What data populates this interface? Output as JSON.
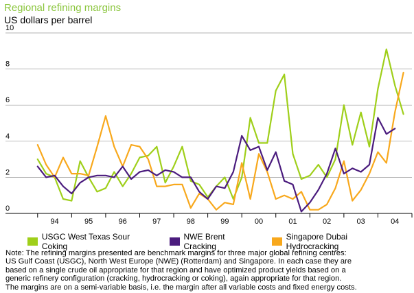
{
  "chart_data": {
    "type": "line",
    "title": "Regional refining margins",
    "ylabel": "US dollars per barrel",
    "xlabel": "",
    "ylim": [
      0,
      10
    ],
    "yticks": [
      0,
      2,
      4,
      6,
      8,
      10
    ],
    "xlim": [
      1993,
      2004.5
    ],
    "xticks": [
      {
        "label": "94",
        "x": 1994.0
      },
      {
        "label": "95",
        "x": 1995.0
      },
      {
        "label": "96",
        "x": 1996.0
      },
      {
        "label": "97",
        "x": 1997.0
      },
      {
        "label": "98",
        "x": 1998.0
      },
      {
        "label": "99",
        "x": 1999.0
      },
      {
        "label": "00",
        "x": 2000.0
      },
      {
        "label": "01",
        "x": 2001.0
      },
      {
        "label": "02",
        "x": 2002.0
      },
      {
        "label": "03",
        "x": 2003.0
      },
      {
        "label": "04",
        "x": 2004.0
      }
    ],
    "series": [
      {
        "name": "USGC West Texas Sour Coking",
        "color": "#9fcf1a",
        "points": [
          [
            1993.5,
            3.0
          ],
          [
            1993.75,
            2.2
          ],
          [
            1994.0,
            2.0
          ],
          [
            1994.25,
            0.8
          ],
          [
            1994.5,
            0.7
          ],
          [
            1994.75,
            2.9
          ],
          [
            1995.0,
            2.0
          ],
          [
            1995.25,
            1.2
          ],
          [
            1995.5,
            1.4
          ],
          [
            1995.75,
            2.3
          ],
          [
            1996.0,
            1.5
          ],
          [
            1996.25,
            2.2
          ],
          [
            1996.5,
            3.1
          ],
          [
            1996.75,
            3.2
          ],
          [
            1997.0,
            3.7
          ],
          [
            1997.25,
            1.7
          ],
          [
            1997.5,
            2.6
          ],
          [
            1997.75,
            3.7
          ],
          [
            1998.0,
            1.8
          ],
          [
            1998.25,
            1.6
          ],
          [
            1998.5,
            0.9
          ],
          [
            1998.75,
            1.5
          ],
          [
            1999.0,
            2.0
          ],
          [
            1999.25,
            0.8
          ],
          [
            1999.5,
            2.0
          ],
          [
            1999.75,
            5.3
          ],
          [
            2000.0,
            3.9
          ],
          [
            2000.25,
            3.9
          ],
          [
            2000.5,
            6.8
          ],
          [
            2000.75,
            7.7
          ],
          [
            2001.0,
            3.3
          ],
          [
            2001.25,
            1.9
          ],
          [
            2001.5,
            2.1
          ],
          [
            2001.75,
            2.7
          ],
          [
            2002.0,
            2.0
          ],
          [
            2002.25,
            3.0
          ],
          [
            2002.5,
            6.0
          ],
          [
            2002.75,
            3.8
          ],
          [
            2003.0,
            5.6
          ],
          [
            2003.25,
            3.7
          ],
          [
            2003.5,
            6.9
          ],
          [
            2003.75,
            9.1
          ],
          [
            2004.0,
            7.1
          ],
          [
            2004.25,
            5.5
          ]
        ]
      },
      {
        "name": "NWE Brent Cracking",
        "color": "#4b1c7e",
        "points": [
          [
            1993.5,
            2.6
          ],
          [
            1993.75,
            2.0
          ],
          [
            1994.0,
            2.1
          ],
          [
            1994.25,
            1.5
          ],
          [
            1994.5,
            1.1
          ],
          [
            1994.75,
            1.7
          ],
          [
            1995.0,
            2.0
          ],
          [
            1995.25,
            2.1
          ],
          [
            1995.5,
            2.1
          ],
          [
            1995.75,
            2.0
          ],
          [
            1996.0,
            2.6
          ],
          [
            1996.25,
            1.9
          ],
          [
            1996.5,
            2.3
          ],
          [
            1996.75,
            2.4
          ],
          [
            1997.0,
            2.1
          ],
          [
            1997.25,
            2.4
          ],
          [
            1997.5,
            2.3
          ],
          [
            1997.75,
            2.0
          ],
          [
            1998.0,
            2.0
          ],
          [
            1998.25,
            1.2
          ],
          [
            1998.5,
            0.8
          ],
          [
            1998.75,
            1.5
          ],
          [
            1999.0,
            1.4
          ],
          [
            1999.25,
            2.3
          ],
          [
            1999.5,
            4.3
          ],
          [
            1999.75,
            3.5
          ],
          [
            2000.0,
            3.7
          ],
          [
            2000.25,
            2.4
          ],
          [
            2000.5,
            3.4
          ],
          [
            2000.75,
            1.8
          ],
          [
            2001.0,
            1.6
          ],
          [
            2001.25,
            0.1
          ],
          [
            2001.5,
            0.6
          ],
          [
            2001.75,
            1.3
          ],
          [
            2002.0,
            2.2
          ],
          [
            2002.25,
            3.6
          ],
          [
            2002.5,
            2.2
          ],
          [
            2002.75,
            2.5
          ],
          [
            2003.0,
            2.3
          ],
          [
            2003.25,
            2.7
          ],
          [
            2003.5,
            5.3
          ],
          [
            2003.75,
            4.4
          ],
          [
            2004.0,
            4.7
          ]
        ]
      },
      {
        "name": "Singapore Dubai Hydrocracking",
        "color": "#f8a81c",
        "points": [
          [
            1993.5,
            3.8
          ],
          [
            1993.75,
            2.7
          ],
          [
            1994.0,
            2.0
          ],
          [
            1994.25,
            3.1
          ],
          [
            1994.5,
            2.2
          ],
          [
            1994.75,
            2.2
          ],
          [
            1995.0,
            2.1
          ],
          [
            1995.25,
            3.7
          ],
          [
            1995.5,
            5.4
          ],
          [
            1995.75,
            3.7
          ],
          [
            1996.0,
            2.6
          ],
          [
            1996.25,
            3.8
          ],
          [
            1996.5,
            3.7
          ],
          [
            1996.75,
            3.0
          ],
          [
            1997.0,
            1.5
          ],
          [
            1997.25,
            1.5
          ],
          [
            1997.5,
            1.6
          ],
          [
            1997.75,
            1.6
          ],
          [
            1998.0,
            0.3
          ],
          [
            1998.25,
            1.1
          ],
          [
            1998.5,
            0.8
          ],
          [
            1998.75,
            0.2
          ],
          [
            1999.0,
            0.6
          ],
          [
            1999.25,
            0.5
          ],
          [
            1999.5,
            2.8
          ],
          [
            1999.75,
            0.8
          ],
          [
            2000.0,
            3.3
          ],
          [
            2000.25,
            2.3
          ],
          [
            2000.5,
            0.8
          ],
          [
            2000.75,
            1.0
          ],
          [
            2001.0,
            0.8
          ],
          [
            2001.25,
            1.2
          ],
          [
            2001.5,
            0.2
          ],
          [
            2001.75,
            0.2
          ],
          [
            2002.0,
            0.5
          ],
          [
            2002.25,
            1.4
          ],
          [
            2002.5,
            2.9
          ],
          [
            2002.75,
            0.7
          ],
          [
            2003.0,
            1.3
          ],
          [
            2003.25,
            2.2
          ],
          [
            2003.5,
            3.4
          ],
          [
            2003.75,
            2.8
          ],
          [
            2004.0,
            5.6
          ],
          [
            2004.25,
            7.8
          ]
        ]
      }
    ]
  },
  "note": [
    "Note: The refining margins presented are benchmark margins for three major global refining centres:",
    "US Gulf Coast (USGC), North West Europe (NWE) (Rotterdam) and Singapore. In each case they are",
    " based on a single crude oil appropriate for that region and have optimized product yields based on a",
    "generic refinery configuration (cracking, hydrocracking or coking), again appropriate for that region.",
    "The margins are on a semi-variable basis, i.e. the margin after all variable costs and fixed energy costs."
  ]
}
